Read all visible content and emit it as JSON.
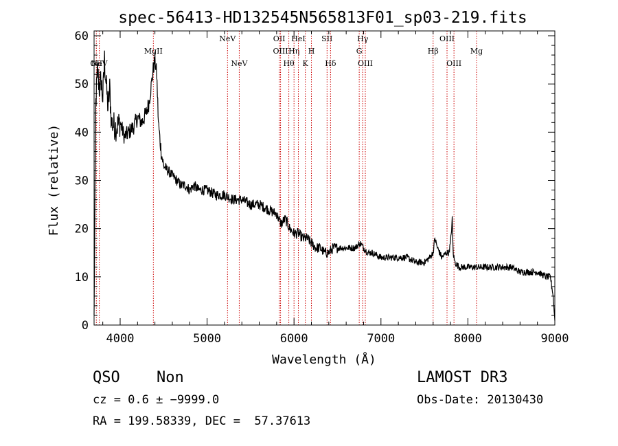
{
  "chart_data": {
    "type": "line",
    "title": "spec-56413-HD132545N565813F01_sp03-219.fits",
    "xlabel": "Wavelength (Å)",
    "ylabel": "Flux (relative)",
    "xlim": [
      3700,
      9000
    ],
    "ylim": [
      0,
      61
    ],
    "x_ticks": [
      "4000",
      "5000",
      "6000",
      "7000",
      "8000",
      "9000"
    ],
    "y_ticks": [
      "0",
      "10",
      "20",
      "30",
      "40",
      "50",
      "60"
    ],
    "series": [
      {
        "x": [
          3700,
          3720,
          3740,
          3760,
          3780,
          3800,
          3820,
          3840,
          3860,
          3880,
          3900,
          3950,
          4000,
          4050,
          4100,
          4150,
          4200,
          4250,
          4300,
          4330,
          4360,
          4380,
          4400,
          4420,
          4440,
          4460,
          4480,
          4500,
          4550,
          4600,
          4650,
          4700,
          4750,
          4800,
          4850,
          4900,
          5000,
          5100,
          5200,
          5300,
          5400,
          5500,
          5600,
          5700,
          5800,
          5850,
          5900,
          5950,
          6000,
          6050,
          6100,
          6150,
          6200,
          6250,
          6300,
          6350,
          6400,
          6450,
          6500,
          6600,
          6700,
          6760,
          6800,
          6850,
          6900,
          7000,
          7100,
          7200,
          7300,
          7400,
          7500,
          7560,
          7600,
          7620,
          7650,
          7700,
          7750,
          7780,
          7800,
          7820,
          7830,
          7850,
          7900,
          8000,
          8100,
          8200,
          8300,
          8400,
          8500,
          8600,
          8700,
          8800,
          8900,
          8950,
          8980,
          9000
        ],
        "y": [
          2,
          46,
          53,
          49,
          51,
          47,
          55,
          50,
          45,
          49,
          42,
          41,
          42,
          39,
          40,
          41,
          43,
          42,
          44,
          46,
          50,
          53,
          55,
          52,
          42,
          38,
          35,
          33,
          32,
          31,
          30,
          29,
          29,
          28,
          29,
          28,
          28,
          27,
          27,
          26,
          26,
          25,
          25,
          24,
          23,
          21,
          22,
          20,
          19,
          19,
          18,
          18,
          17,
          16,
          16,
          15,
          15,
          16,
          16,
          16,
          16,
          17,
          16,
          15,
          15,
          14,
          14,
          14,
          14,
          13,
          13,
          14,
          15,
          18,
          16,
          14,
          15,
          15,
          17,
          22,
          15,
          13,
          12,
          12,
          12,
          12,
          12,
          12,
          12,
          11,
          11,
          11,
          10,
          10,
          6,
          1
        ]
      }
    ],
    "lines": [
      {
        "x": 3726,
        "label": "OII",
        "row": 2
      },
      {
        "x": 3760,
        "label": "NeV",
        "row": 2
      },
      {
        "x": 4382,
        "label": "MgII",
        "row": 1
      },
      {
        "x": 5235,
        "label": "NeV",
        "row": 0
      },
      {
        "x": 5370,
        "label": "NeV",
        "row": 2
      },
      {
        "x": 5830,
        "label": "OII",
        "row": 0
      },
      {
        "x": 5845,
        "label": "OIII",
        "row": 1
      },
      {
        "x": 5940,
        "label": "Hθ",
        "row": 2
      },
      {
        "x": 6000,
        "label": "Hη",
        "row": 1
      },
      {
        "x": 6050,
        "label": "HeI",
        "row": 0
      },
      {
        "x": 6130,
        "label": "K",
        "row": 2
      },
      {
        "x": 6200,
        "label": "H",
        "row": 1
      },
      {
        "x": 6380,
        "label": "SII",
        "row": 0
      },
      {
        "x": 6420,
        "label": "Hδ",
        "row": 2
      },
      {
        "x": 6750,
        "label": "G",
        "row": 1
      },
      {
        "x": 6790,
        "label": "Hγ",
        "row": 0
      },
      {
        "x": 6820,
        "label": "OIII",
        "row": 2
      },
      {
        "x": 7600,
        "label": "Hβ",
        "row": 1
      },
      {
        "x": 7760,
        "label": "OIII",
        "row": 0
      },
      {
        "x": 7840,
        "label": "OIII",
        "row": 2
      },
      {
        "x": 8100,
        "label": "Mg",
        "row": 1
      }
    ],
    "line_color": "#000000",
    "marker_color": "#cc0000"
  },
  "info": {
    "class": "QSO",
    "subclass": "Non",
    "survey": "LAMOST DR3",
    "redshift": "cz = 0.6 ± −9999.0",
    "obs_date": "Obs-Date: 20130430",
    "coords": "RA = 199.58339, DEC =  57.37613"
  }
}
